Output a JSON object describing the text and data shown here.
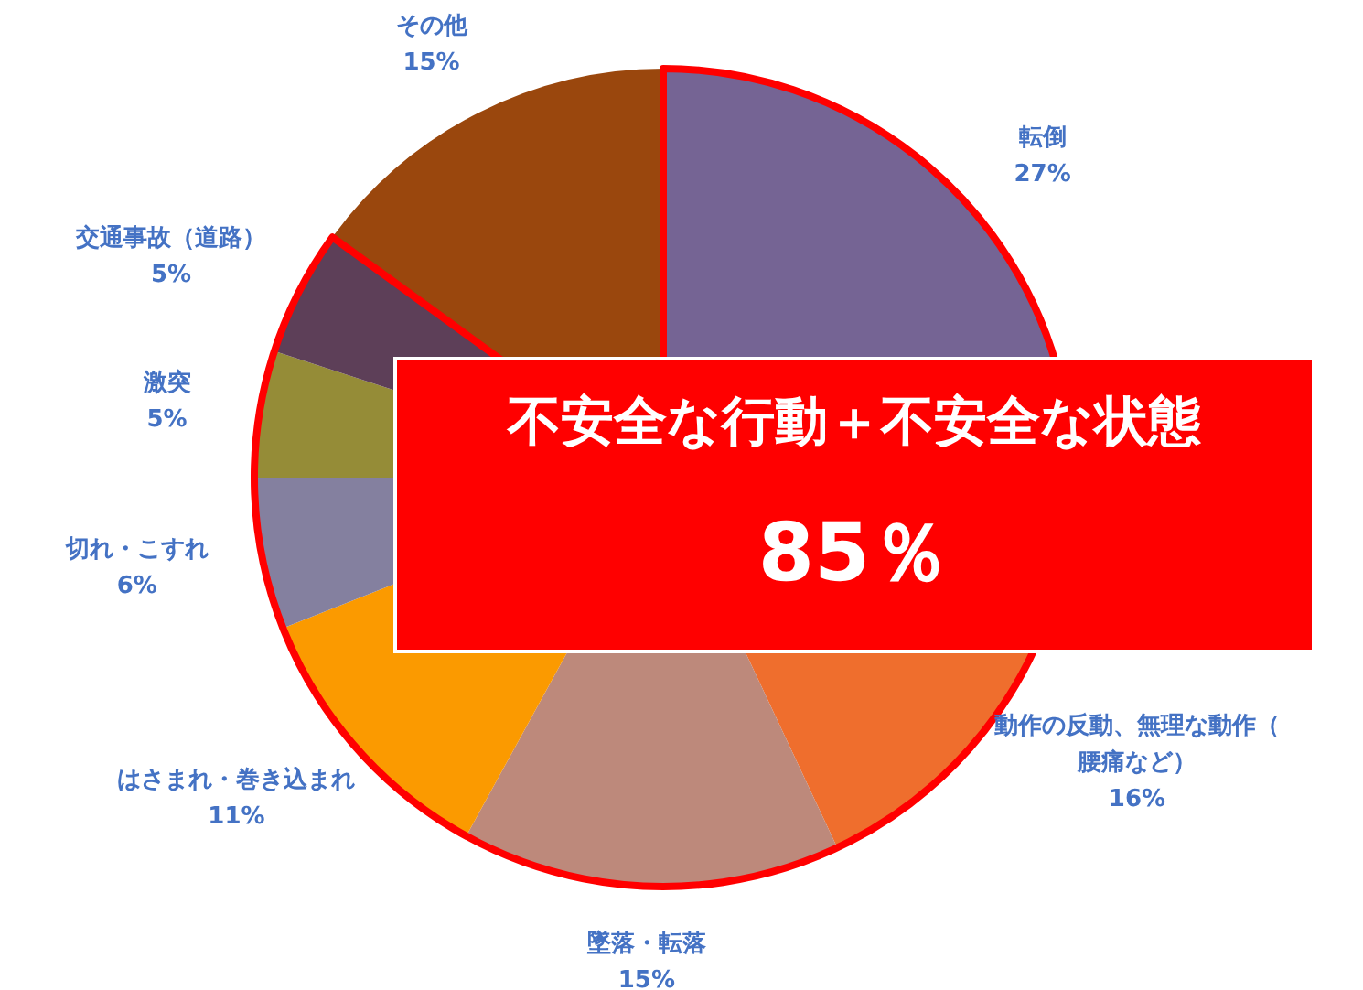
{
  "chart_data": {
    "type": "pie",
    "categories": [
      "転倒",
      "動作の反動、無理な動作（腰痛など）",
      "墜落・転落",
      "はさまれ・巻き込まれ",
      "切れ・こすれ",
      "激突",
      "交通事故（道路）",
      "その他"
    ],
    "values": [
      27,
      16,
      15,
      11,
      6,
      5,
      5,
      15
    ],
    "colors": [
      "#756494",
      "#ef6e2d",
      "#bd897b",
      "#fb9a00",
      "#84809f",
      "#958c37",
      "#5d3f58",
      "#9a470d"
    ],
    "value_labels": [
      "27%",
      "16%",
      "15%",
      "11%",
      "6%",
      "5%",
      "5%",
      "15%"
    ],
    "annotations": [
      "不安全な行動＋不安全な状態",
      "85％"
    ],
    "legend": false
  }
}
